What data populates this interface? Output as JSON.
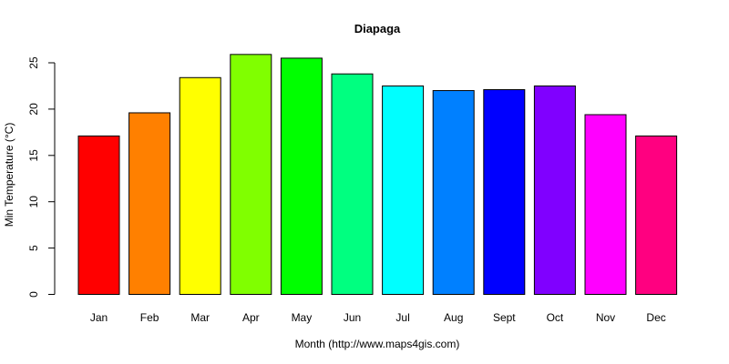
{
  "chart_data": {
    "type": "bar",
    "title": "Diapaga",
    "xlabel": "Month (http://www.maps4gis.com)",
    "ylabel": "Min Temperature (°C)",
    "categories": [
      "Jan",
      "Feb",
      "Mar",
      "Apr",
      "May",
      "Jun",
      "Jul",
      "Aug",
      "Sept",
      "Oct",
      "Nov",
      "Dec"
    ],
    "values": [
      17.1,
      19.6,
      23.4,
      25.9,
      25.5,
      23.8,
      22.5,
      22.0,
      22.1,
      22.5,
      19.4,
      17.1
    ],
    "colors": [
      "#FF0000",
      "#FF8000",
      "#FFFF00",
      "#80FF00",
      "#00FF00",
      "#00FF80",
      "#00FFFF",
      "#0080FF",
      "#0000FF",
      "#8000FF",
      "#FF00FF",
      "#FF0080"
    ],
    "yticks": [
      0,
      5,
      10,
      15,
      20,
      25
    ],
    "ylim": [
      0,
      26
    ],
    "grid": false,
    "legend": "none"
  }
}
